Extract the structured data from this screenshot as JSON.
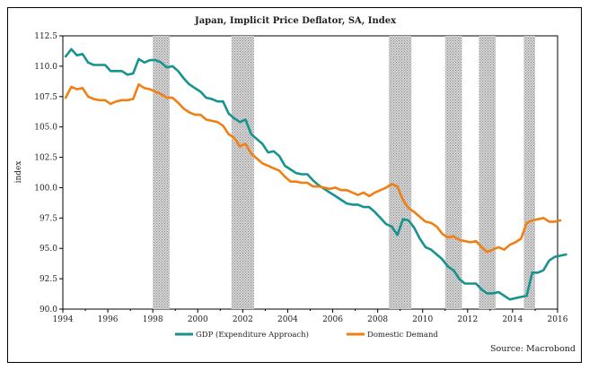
{
  "chart_data": {
    "type": "line",
    "title": "Japan, Implicit Price Deflator, SA, Index",
    "xlabel": "",
    "ylabel": "index",
    "xlim": [
      1994,
      2016
    ],
    "ylim": [
      90,
      112.5
    ],
    "x_ticks": [
      "1994",
      "1996",
      "1998",
      "2000",
      "2002",
      "2004",
      "2006",
      "2008",
      "2010",
      "2012",
      "2014",
      "2016"
    ],
    "y_ticks": [
      "90.0",
      "92.5",
      "95.0",
      "97.5",
      "100.0",
      "102.5",
      "105.0",
      "107.5",
      "110.0",
      "112.5"
    ],
    "recession_bands": [
      [
        1998.0,
        1998.75
      ],
      [
        2001.5,
        2002.5
      ],
      [
        2008.5,
        2009.5
      ],
      [
        2011.0,
        2011.75
      ],
      [
        2012.5,
        2013.25
      ],
      [
        2014.5,
        2015.0
      ]
    ],
    "legend_position": "bottom",
    "source": "Source: Macrobond",
    "colors": {
      "gdp": "#17938f",
      "domestic": "#f07f14",
      "band": "#bdbdbd"
    },
    "series": [
      {
        "name": "GDP (Expenditure Approach)",
        "color": "#17938f",
        "points": [
          [
            1994.125,
            110.8
          ],
          [
            1994.375,
            111.4
          ],
          [
            1994.625,
            110.9
          ],
          [
            1994.875,
            111.0
          ],
          [
            1995.125,
            110.3
          ],
          [
            1995.375,
            110.1
          ],
          [
            1995.625,
            110.1
          ],
          [
            1995.875,
            110.1
          ],
          [
            1996.125,
            109.6
          ],
          [
            1996.375,
            109.6
          ],
          [
            1996.625,
            109.6
          ],
          [
            1996.875,
            109.3
          ],
          [
            1997.125,
            109.4
          ],
          [
            1997.375,
            110.6
          ],
          [
            1997.625,
            110.3
          ],
          [
            1997.875,
            110.5
          ],
          [
            1998.125,
            110.5
          ],
          [
            1998.375,
            110.3
          ],
          [
            1998.625,
            109.9
          ],
          [
            1998.875,
            110.0
          ],
          [
            1999.125,
            109.6
          ],
          [
            1999.375,
            109.0
          ],
          [
            1999.625,
            108.5
          ],
          [
            1999.875,
            108.2
          ],
          [
            2000.125,
            107.9
          ],
          [
            2000.375,
            107.4
          ],
          [
            2000.625,
            107.3
          ],
          [
            2000.875,
            107.1
          ],
          [
            2001.125,
            107.1
          ],
          [
            2001.375,
            106.1
          ],
          [
            2001.625,
            105.7
          ],
          [
            2001.875,
            105.4
          ],
          [
            2002.125,
            105.6
          ],
          [
            2002.375,
            104.4
          ],
          [
            2002.625,
            104.0
          ],
          [
            2002.875,
            103.6
          ],
          [
            2003.125,
            102.9
          ],
          [
            2003.375,
            103.0
          ],
          [
            2003.625,
            102.6
          ],
          [
            2003.875,
            101.8
          ],
          [
            2004.125,
            101.5
          ],
          [
            2004.375,
            101.2
          ],
          [
            2004.625,
            101.1
          ],
          [
            2004.875,
            101.1
          ],
          [
            2005.125,
            100.6
          ],
          [
            2005.375,
            100.2
          ],
          [
            2005.625,
            99.9
          ],
          [
            2005.875,
            99.6
          ],
          [
            2006.125,
            99.3
          ],
          [
            2006.375,
            99.0
          ],
          [
            2006.625,
            98.7
          ],
          [
            2006.875,
            98.6
          ],
          [
            2007.125,
            98.6
          ],
          [
            2007.375,
            98.4
          ],
          [
            2007.625,
            98.4
          ],
          [
            2007.875,
            98.0
          ],
          [
            2008.125,
            97.5
          ],
          [
            2008.375,
            97.0
          ],
          [
            2008.625,
            96.8
          ],
          [
            2008.875,
            96.1
          ],
          [
            2009.125,
            97.4
          ],
          [
            2009.375,
            97.3
          ],
          [
            2009.625,
            96.7
          ],
          [
            2009.875,
            95.8
          ],
          [
            2010.125,
            95.1
          ],
          [
            2010.375,
            94.9
          ],
          [
            2010.625,
            94.5
          ],
          [
            2010.875,
            94.1
          ],
          [
            2011.125,
            93.5
          ],
          [
            2011.375,
            93.2
          ],
          [
            2011.625,
            92.5
          ],
          [
            2011.875,
            92.1
          ],
          [
            2012.125,
            92.1
          ],
          [
            2012.375,
            92.1
          ],
          [
            2012.625,
            91.6
          ],
          [
            2012.875,
            91.3
          ],
          [
            2013.125,
            91.3
          ],
          [
            2013.375,
            91.4
          ],
          [
            2013.625,
            91.1
          ],
          [
            2013.875,
            90.8
          ],
          [
            2014.125,
            90.9
          ],
          [
            2014.375,
            91.0
          ],
          [
            2014.625,
            91.1
          ],
          [
            2014.875,
            93.0
          ],
          [
            2015.125,
            93.0
          ],
          [
            2015.375,
            93.2
          ],
          [
            2015.625,
            94.0
          ],
          [
            2015.875,
            94.3
          ],
          [
            2016.125,
            94.4
          ],
          [
            2016.375,
            94.5
          ]
        ]
      },
      {
        "name": "Domestic Demand",
        "color": "#f07f14",
        "points": [
          [
            1994.125,
            107.4
          ],
          [
            1994.375,
            108.3
          ],
          [
            1994.625,
            108.1
          ],
          [
            1994.875,
            108.2
          ],
          [
            1995.125,
            107.5
          ],
          [
            1995.375,
            107.3
          ],
          [
            1995.625,
            107.2
          ],
          [
            1995.875,
            107.2
          ],
          [
            1996.125,
            106.9
          ],
          [
            1996.375,
            107.1
          ],
          [
            1996.625,
            107.2
          ],
          [
            1996.875,
            107.2
          ],
          [
            1997.125,
            107.3
          ],
          [
            1997.375,
            108.5
          ],
          [
            1997.625,
            108.2
          ],
          [
            1997.875,
            108.1
          ],
          [
            1998.125,
            107.9
          ],
          [
            1998.375,
            107.7
          ],
          [
            1998.625,
            107.4
          ],
          [
            1998.875,
            107.4
          ],
          [
            1999.125,
            107.0
          ],
          [
            1999.375,
            106.5
          ],
          [
            1999.625,
            106.2
          ],
          [
            1999.875,
            106.0
          ],
          [
            2000.125,
            106.0
          ],
          [
            2000.375,
            105.6
          ],
          [
            2000.625,
            105.5
          ],
          [
            2000.875,
            105.4
          ],
          [
            2001.125,
            105.1
          ],
          [
            2001.375,
            104.4
          ],
          [
            2001.625,
            104.1
          ],
          [
            2001.875,
            103.4
          ],
          [
            2002.125,
            103.6
          ],
          [
            2002.375,
            102.8
          ],
          [
            2002.625,
            102.4
          ],
          [
            2002.875,
            102.0
          ],
          [
            2003.125,
            101.8
          ],
          [
            2003.375,
            101.6
          ],
          [
            2003.625,
            101.4
          ],
          [
            2003.875,
            100.9
          ],
          [
            2004.125,
            100.5
          ],
          [
            2004.375,
            100.5
          ],
          [
            2004.625,
            100.4
          ],
          [
            2004.875,
            100.4
          ],
          [
            2005.125,
            100.1
          ],
          [
            2005.375,
            100.1
          ],
          [
            2005.625,
            100.0
          ],
          [
            2005.875,
            99.9
          ],
          [
            2006.125,
            100.0
          ],
          [
            2006.375,
            99.8
          ],
          [
            2006.625,
            99.8
          ],
          [
            2006.875,
            99.6
          ],
          [
            2007.125,
            99.4
          ],
          [
            2007.375,
            99.6
          ],
          [
            2007.625,
            99.3
          ],
          [
            2007.875,
            99.6
          ],
          [
            2008.125,
            99.8
          ],
          [
            2008.375,
            100.0
          ],
          [
            2008.625,
            100.3
          ],
          [
            2008.875,
            100.1
          ],
          [
            2009.125,
            99.0
          ],
          [
            2009.375,
            98.3
          ],
          [
            2009.625,
            98.0
          ],
          [
            2009.875,
            97.6
          ],
          [
            2010.125,
            97.2
          ],
          [
            2010.375,
            97.1
          ],
          [
            2010.625,
            96.8
          ],
          [
            2010.875,
            96.2
          ],
          [
            2011.125,
            95.9
          ],
          [
            2011.375,
            96.0
          ],
          [
            2011.625,
            95.7
          ],
          [
            2011.875,
            95.6
          ],
          [
            2012.125,
            95.5
          ],
          [
            2012.375,
            95.6
          ],
          [
            2012.625,
            95.1
          ],
          [
            2012.875,
            94.7
          ],
          [
            2013.125,
            94.9
          ],
          [
            2013.375,
            95.1
          ],
          [
            2013.625,
            94.9
          ],
          [
            2013.875,
            95.3
          ],
          [
            2014.125,
            95.5
          ],
          [
            2014.375,
            95.8
          ],
          [
            2014.625,
            97.1
          ],
          [
            2014.875,
            97.3
          ],
          [
            2015.125,
            97.4
          ],
          [
            2015.375,
            97.5
          ],
          [
            2015.625,
            97.2
          ],
          [
            2015.875,
            97.2
          ],
          [
            2016.125,
            97.3
          ]
        ]
      }
    ]
  }
}
